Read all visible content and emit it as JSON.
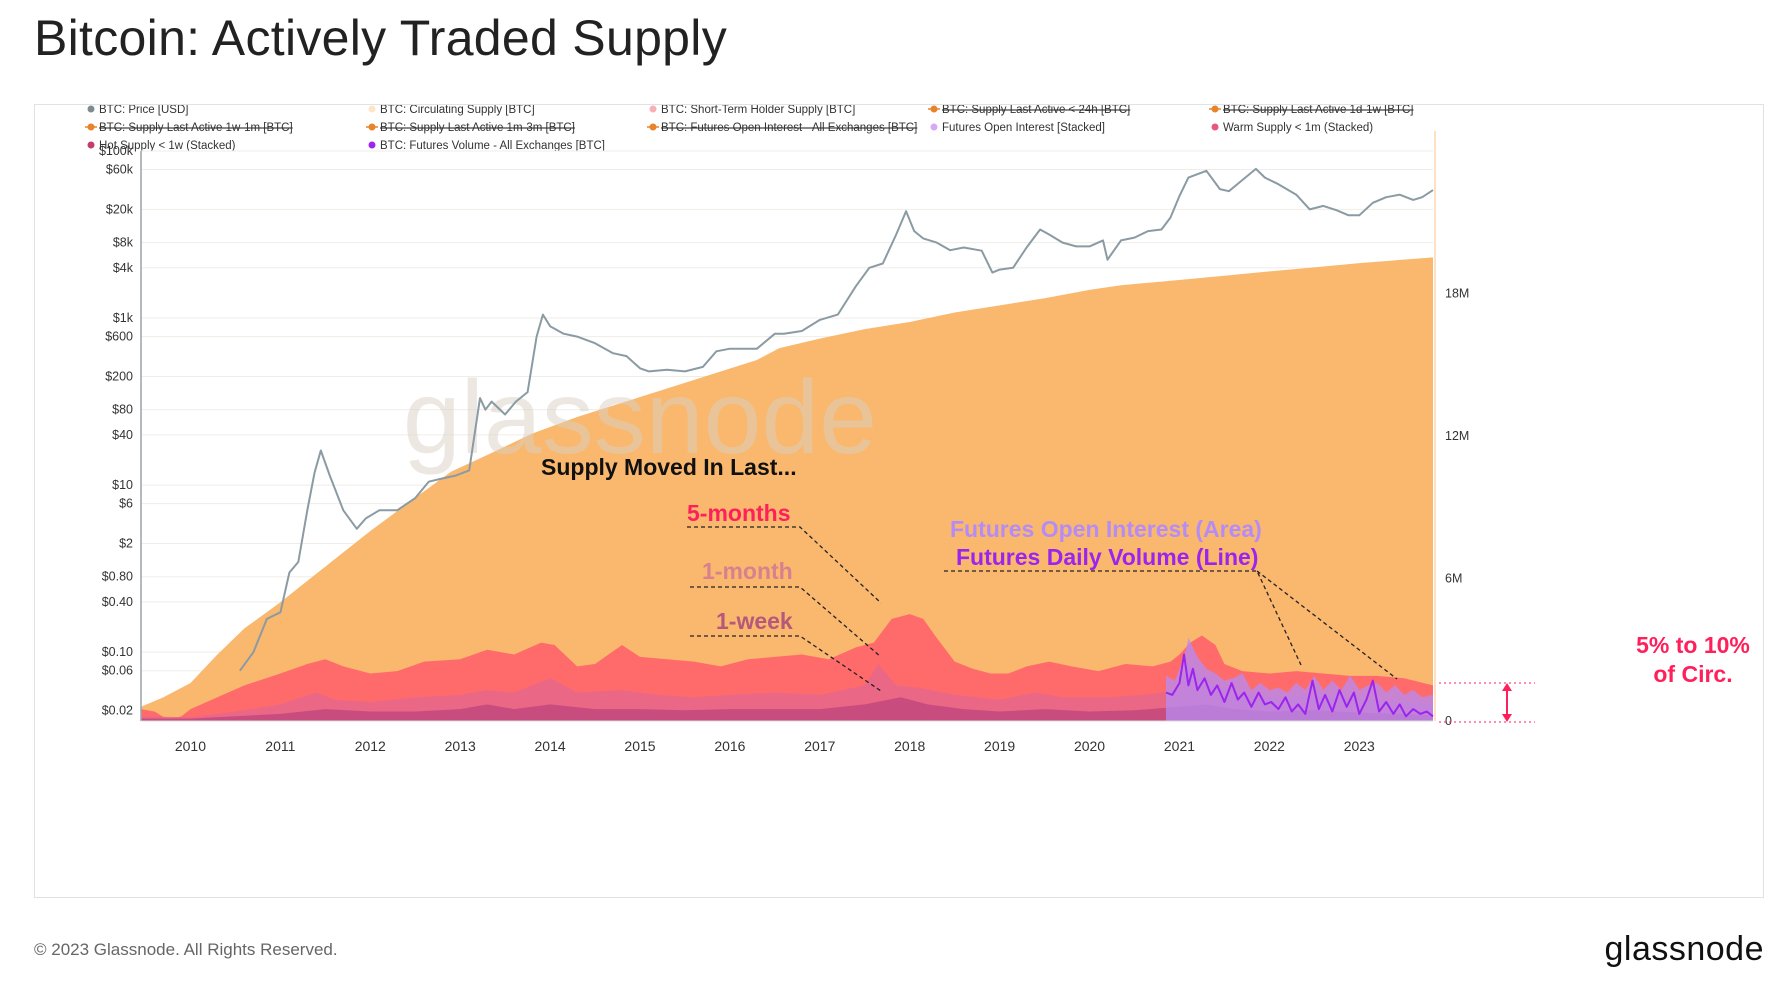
{
  "page": {
    "title": "Bitcoin: Actively Traded Supply",
    "copyright": "© 2023 Glassnode. All Rights Reserved.",
    "logo_text": "glassnode",
    "watermark": "glassnode"
  },
  "colors": {
    "price": "#8a9ba3",
    "circulating": "#f9b466",
    "five_month": "#ff6b6b",
    "one_month": "#e8678a",
    "one_week": "#c64b7d",
    "futures_oi": "#b58cf5",
    "futures_volume": "#9b24ee",
    "annotation_red": "#ff1f5a",
    "annotation_pink": "#d8808e",
    "annotation_mauve": "#b5587a"
  },
  "legend": [
    {
      "label": "BTC: Price [USD]",
      "color": "#7d8a90",
      "struck": false
    },
    {
      "label": "BTC: Circulating Supply [BTC]",
      "color": "#fde6c8",
      "struck": false
    },
    {
      "label": "BTC: Short-Term Holder Supply [BTC]",
      "color": "#f7b0b6",
      "struck": false
    },
    {
      "label": "BTC: Supply Last Active < 24h [BTC]",
      "color": "#e8832a",
      "struck": true
    },
    {
      "label": "BTC: Supply Last Active 1d-1w [BTC]",
      "color": "#e8832a",
      "struck": true
    },
    {
      "label": "BTC: Supply Last Active 1w-1m [BTC]",
      "color": "#e8832a",
      "struck": true
    },
    {
      "label": "BTC: Supply Last Active 1m-3m [BTC]",
      "color": "#e8832a",
      "struck": true
    },
    {
      "label": "BTC: Futures Open Interest - All Exchanges [BTC]",
      "color": "#e8832a",
      "struck": true
    },
    {
      "label": "Futures Open Interest [Stacked]",
      "color": "#d6a8f7",
      "struck": false
    },
    {
      "label": "Warm Supply < 1m (Stacked)",
      "color": "#e8577a",
      "struck": false
    },
    {
      "label": "Hot Supply < 1w (Stacked)",
      "color": "#c43d6e",
      "struck": false
    },
    {
      "label": "BTC: Futures Volume - All Exchanges [BTC]",
      "color": "#9b24ee",
      "struck": false
    }
  ],
  "annotations": {
    "supply_moved": "Supply Moved In Last...",
    "five_months": "5-months",
    "one_month": "1-month",
    "one_week": "1-week",
    "futures_oi": "Futures Open Interest (Area)",
    "futures_volume": "Futures Daily Volume (Line)",
    "circ_range_line1": "5% to 10%",
    "circ_range_line2": "of Circ."
  },
  "chart_data": {
    "type": "line",
    "x_axis": {
      "ticks": [
        "2010",
        "2011",
        "2012",
        "2013",
        "2014",
        "2015",
        "2016",
        "2017",
        "2018",
        "2019",
        "2020",
        "2021",
        "2022",
        "2023"
      ],
      "range": [
        2009.45,
        2023.82
      ]
    },
    "y_left": {
      "label": "",
      "scale": "log",
      "range": [
        0.015,
        100000
      ],
      "ticks": [
        "$100k",
        "$60k",
        "$20k",
        "$8k",
        "$4k",
        "$1k",
        "$600",
        "$200",
        "$80",
        "$40",
        "$10",
        "$6",
        "$2",
        "$0.80",
        "$0.40",
        "$0.10",
        "$0.06",
        "$0.02"
      ],
      "tick_values": [
        100000,
        60000,
        20000,
        8000,
        4000,
        1000,
        600,
        200,
        80,
        40,
        10,
        6,
        2,
        0.8,
        0.4,
        0.1,
        0.06,
        0.02
      ]
    },
    "y_right": {
      "label": "",
      "scale": "linear",
      "range": [
        0,
        24000000
      ],
      "ticks": [
        "0",
        "6M",
        "12M",
        "18M"
      ],
      "tick_values": [
        0,
        6000000,
        12000000,
        18000000
      ]
    },
    "series": [
      {
        "name": "BTC: Price [USD]",
        "axis": "left",
        "kind": "line",
        "x": [
          2010.55,
          2010.7,
          2010.85,
          2011.0,
          2011.1,
          2011.2,
          2011.3,
          2011.38,
          2011.45,
          2011.55,
          2011.7,
          2011.85,
          2011.95,
          2012.1,
          2012.3,
          2012.5,
          2012.65,
          2012.8,
          2012.95,
          2013.1,
          2013.22,
          2013.28,
          2013.35,
          2013.5,
          2013.62,
          2013.75,
          2013.85,
          2013.92,
          2014.0,
          2014.15,
          2014.3,
          2014.5,
          2014.7,
          2014.85,
          2015.0,
          2015.1,
          2015.3,
          2015.5,
          2015.7,
          2015.85,
          2016.0,
          2016.3,
          2016.5,
          2016.6,
          2016.8,
          2017.0,
          2017.2,
          2017.4,
          2017.55,
          2017.7,
          2017.85,
          2017.96,
          2018.05,
          2018.15,
          2018.3,
          2018.45,
          2018.6,
          2018.8,
          2018.92,
          2019.0,
          2019.15,
          2019.3,
          2019.45,
          2019.55,
          2019.7,
          2019.85,
          2020.0,
          2020.15,
          2020.2,
          2020.35,
          2020.5,
          2020.65,
          2020.8,
          2020.9,
          2021.0,
          2021.1,
          2021.3,
          2021.45,
          2021.55,
          2021.7,
          2021.85,
          2021.95,
          2022.1,
          2022.3,
          2022.45,
          2022.6,
          2022.75,
          2022.88,
          2023.0,
          2023.15,
          2023.3,
          2023.45,
          2023.6,
          2023.7,
          2023.82
        ],
        "values": [
          0.06,
          0.1,
          0.25,
          0.3,
          0.9,
          1.2,
          5,
          14,
          26,
          13,
          5,
          3,
          4,
          5,
          5,
          7,
          11,
          12,
          13,
          15,
          110,
          80,
          100,
          70,
          100,
          130,
          600,
          1100,
          800,
          650,
          600,
          500,
          380,
          350,
          250,
          230,
          240,
          230,
          260,
          400,
          430,
          430,
          650,
          650,
          700,
          950,
          1100,
          2400,
          4000,
          4500,
          10000,
          19000,
          11000,
          9000,
          8000,
          6500,
          7000,
          6400,
          3500,
          3800,
          4000,
          7000,
          11500,
          10000,
          8000,
          7200,
          7200,
          8500,
          5000,
          8500,
          9200,
          11000,
          11500,
          16000,
          29000,
          48000,
          58000,
          35000,
          33000,
          45000,
          61000,
          48000,
          40000,
          30000,
          20000,
          22000,
          19500,
          17000,
          17000,
          24000,
          28000,
          30000,
          26000,
          28000,
          34000
        ]
      },
      {
        "name": "BTC: Circulating Supply [BTC]",
        "axis": "right",
        "kind": "area",
        "x": [
          2009.45,
          2009.7,
          2010.0,
          2010.3,
          2010.6,
          2011.0,
          2011.3,
          2011.6,
          2012.0,
          2012.5,
          2012.9,
          2013.3,
          2013.8,
          2014.3,
          2014.8,
          2015.3,
          2015.8,
          2016.3,
          2016.55,
          2017.0,
          2017.5,
          2018.0,
          2018.5,
          2019.0,
          2019.5,
          2020.0,
          2020.35,
          2020.8,
          2021.5,
          2022.0,
          2022.5,
          2023.0,
          2023.82
        ],
        "values": [
          600000,
          1000000,
          1600000,
          2800000,
          3900000,
          5000000,
          5900000,
          6800000,
          8000000,
          9400000,
          10500000,
          11200000,
          12100000,
          12800000,
          13400000,
          14000000,
          14600000,
          15200000,
          15700000,
          16100000,
          16500000,
          16800000,
          17200000,
          17500000,
          17800000,
          18150000,
          18350000,
          18500000,
          18750000,
          18930000,
          19100000,
          19280000,
          19520000
        ]
      },
      {
        "name": "5-months",
        "axis": "right",
        "kind": "area",
        "x": [
          2009.45,
          2009.6,
          2009.75,
          2009.9,
          2010.0,
          2010.3,
          2010.6,
          2011.0,
          2011.3,
          2011.5,
          2011.7,
          2012.0,
          2012.3,
          2012.6,
          2013.0,
          2013.3,
          2013.6,
          2013.9,
          2014.05,
          2014.3,
          2014.5,
          2014.8,
          2015.0,
          2015.3,
          2015.6,
          2015.9,
          2016.2,
          2016.5,
          2016.8,
          2017.1,
          2017.4,
          2017.6,
          2017.8,
          2018.0,
          2018.15,
          2018.3,
          2018.5,
          2018.7,
          2018.9,
          2019.1,
          2019.3,
          2019.55,
          2019.8,
          2020.1,
          2020.4,
          2020.7,
          2020.9,
          2021.0,
          2021.12,
          2021.25,
          2021.4,
          2021.5,
          2021.7,
          2022.0,
          2022.3,
          2022.6,
          2022.9,
          2023.2,
          2023.5,
          2023.82
        ],
        "values": [
          500000,
          400000,
          50000,
          200000,
          500000,
          1000000,
          1500000,
          2000000,
          2400000,
          2600000,
          2300000,
          2000000,
          2100000,
          2500000,
          2600000,
          3000000,
          2800000,
          3300000,
          3200000,
          2300000,
          2400000,
          3200000,
          2700000,
          2600000,
          2500000,
          2300000,
          2600000,
          2700000,
          2800000,
          2600000,
          3100000,
          3300000,
          4300000,
          4500000,
          4300000,
          3500000,
          2500000,
          2200000,
          2000000,
          2000000,
          2300000,
          2500000,
          2300000,
          2100000,
          2400000,
          2300000,
          2500000,
          2800000,
          3300000,
          3600000,
          3200000,
          2400000,
          2100000,
          2000000,
          2100000,
          2000000,
          1900000,
          1900000,
          1800000,
          1500000
        ]
      },
      {
        "name": "1-month",
        "axis": "right",
        "kind": "area",
        "x": [
          2009.45,
          2010.0,
          2010.5,
          2011.0,
          2011.4,
          2011.6,
          2012.0,
          2012.5,
          2013.0,
          2013.3,
          2013.6,
          2014.0,
          2014.3,
          2014.8,
          2015.2,
          2015.6,
          2016.0,
          2016.5,
          2017.0,
          2017.5,
          2017.65,
          2017.85,
          2018.1,
          2018.5,
          2019.0,
          2019.4,
          2019.7,
          2020.2,
          2020.6,
          2021.0,
          2021.1,
          2021.3,
          2021.6,
          2022.0,
          2022.5,
          2023.0,
          2023.5,
          2023.82
        ],
        "values": [
          200000,
          150000,
          400000,
          700000,
          1200000,
          900000,
          800000,
          1000000,
          1100000,
          1300000,
          1200000,
          1800000,
          1200000,
          1300000,
          1100000,
          1000000,
          1100000,
          1200000,
          1100000,
          1500000,
          2400000,
          1500000,
          1400000,
          1100000,
          900000,
          1200000,
          1000000,
          1000000,
          1100000,
          1300000,
          2400000,
          1700000,
          1200000,
          1000000,
          1100000,
          900000,
          800000,
          700000
        ]
      },
      {
        "name": "1-week",
        "axis": "right",
        "kind": "area",
        "x": [
          2009.45,
          2010.0,
          2010.5,
          2011.0,
          2011.5,
          2012.0,
          2012.5,
          2013.0,
          2013.3,
          2013.6,
          2014.0,
          2014.5,
          2015.0,
          2015.5,
          2016.0,
          2016.5,
          2017.0,
          2017.5,
          2017.9,
          2018.2,
          2018.6,
          2019.0,
          2019.5,
          2020.0,
          2020.5,
          2021.0,
          2021.3,
          2021.6,
          2022.0,
          2022.5,
          2023.0,
          2023.5,
          2023.82
        ],
        "values": [
          100000,
          100000,
          200000,
          300000,
          500000,
          400000,
          400000,
          500000,
          700000,
          500000,
          700000,
          500000,
          500000,
          450000,
          500000,
          500000,
          500000,
          700000,
          1000000,
          700000,
          500000,
          400000,
          500000,
          400000,
          450000,
          600000,
          700000,
          500000,
          400000,
          450000,
          350000,
          300000,
          250000
        ]
      },
      {
        "name": "Futures Open Interest [Stacked]",
        "axis": "right",
        "kind": "area",
        "x": [
          2020.85,
          2020.95,
          2021.0,
          2021.05,
          2021.1,
          2021.2,
          2021.3,
          2021.4,
          2021.5,
          2021.6,
          2021.7,
          2021.8,
          2021.9,
          2022.0,
          2022.1,
          2022.2,
          2022.3,
          2022.4,
          2022.5,
          2022.6,
          2022.7,
          2022.8,
          2022.9,
          2023.0,
          2023.1,
          2023.2,
          2023.3,
          2023.4,
          2023.5,
          2023.6,
          2023.7,
          2023.82
        ],
        "values": [
          1900000,
          1700000,
          2200000,
          2600000,
          3500000,
          2700000,
          2200000,
          2000000,
          1700000,
          1800000,
          2000000,
          1300000,
          1600000,
          1300000,
          1400000,
          1200000,
          1600000,
          1300000,
          1900000,
          1300000,
          1700000,
          1300000,
          1900000,
          1300000,
          1500000,
          1600000,
          1200000,
          1500000,
          1100000,
          1300000,
          1000000,
          1100000
        ]
      },
      {
        "name": "Futures Daily Volume (Line)",
        "axis": "right",
        "kind": "line",
        "x": [
          2020.85,
          2020.92,
          2021.0,
          2021.05,
          2021.1,
          2021.15,
          2021.2,
          2021.28,
          2021.35,
          2021.42,
          2021.5,
          2021.58,
          2021.65,
          2021.72,
          2021.8,
          2021.88,
          2021.95,
          2022.02,
          2022.1,
          2022.18,
          2022.25,
          2022.32,
          2022.4,
          2022.48,
          2022.55,
          2022.62,
          2022.7,
          2022.78,
          2022.86,
          2022.94,
          2023.0,
          2023.08,
          2023.15,
          2023.22,
          2023.3,
          2023.38,
          2023.45,
          2023.52,
          2023.6,
          2023.68,
          2023.75,
          2023.82
        ],
        "values": [
          1200000,
          1100000,
          1600000,
          2800000,
          1500000,
          2200000,
          1300000,
          1800000,
          1100000,
          1500000,
          800000,
          1600000,
          900000,
          1200000,
          600000,
          1200000,
          700000,
          800000,
          500000,
          1000000,
          400000,
          700000,
          300000,
          1700000,
          500000,
          1100000,
          400000,
          1300000,
          600000,
          1200000,
          300000,
          900000,
          1700000,
          400000,
          800000,
          300000,
          700000,
          200000,
          500000,
          300000,
          400000,
          200000
        ]
      }
    ]
  }
}
